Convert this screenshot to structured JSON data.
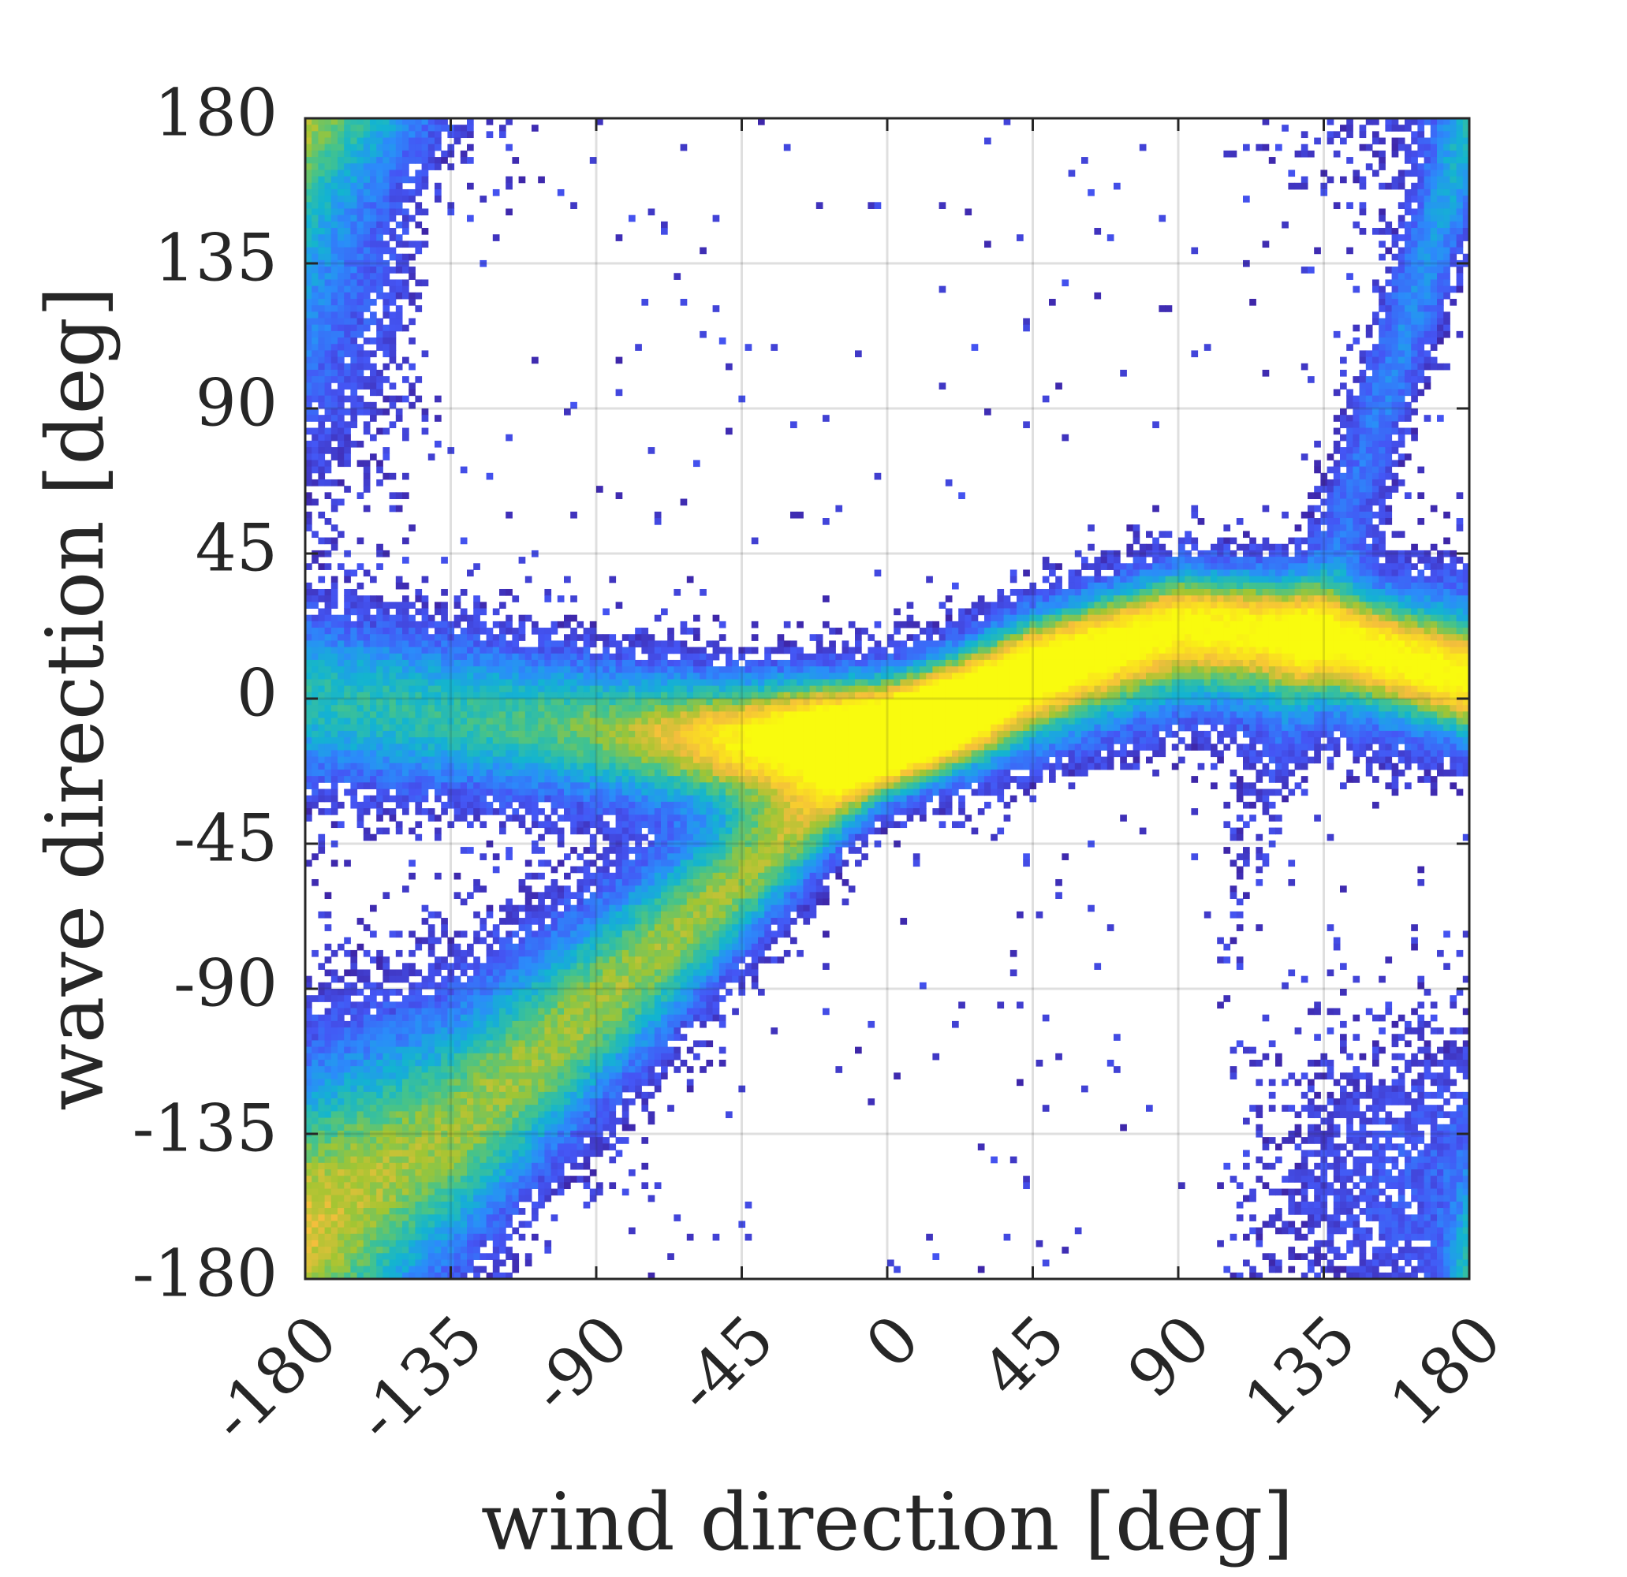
{
  "chart_data": {
    "type": "heatmap",
    "title": "",
    "xlabel": "wind direction [deg]",
    "ylabel": "wave direction [deg]",
    "xlim": [
      -180,
      180
    ],
    "ylim": [
      -180,
      180
    ],
    "xticks": [
      "-180",
      "-135",
      "-90",
      "-45",
      "0",
      "45",
      "90",
      "135",
      "180"
    ],
    "yticks": [
      "180",
      "135",
      "90",
      "45",
      "0",
      "-45",
      "-90",
      "-135",
      "-180"
    ],
    "grid": true,
    "colormap": "parula",
    "colors": [
      "#3e26a8",
      "#4456f5",
      "#2b8cfa",
      "#13b4d0",
      "#44c38c",
      "#a2c532",
      "#f4be3c",
      "#fadd22",
      "#f9fb0e"
    ],
    "density_ridges": [
      {
        "x": [
          -180,
          -135,
          -90,
          -45,
          0,
          45,
          90,
          135,
          180
        ],
        "y": [
          -160,
          -135,
          -95,
          -55,
          -15,
          10,
          25,
          20,
          5
        ]
      },
      {
        "x": [
          -180,
          -135,
          -90,
          -45,
          0,
          45,
          90,
          135,
          180
        ],
        "y": [
          0,
          -5,
          -10,
          -15,
          -10,
          5,
          15,
          15,
          10
        ]
      },
      {
        "x": [
          -180,
          -150,
          -120,
          120,
          150,
          180
        ],
        "y": [
          180,
          90,
          60,
          -140,
          -170,
          -180
        ]
      }
    ],
    "peak": {
      "x": -15,
      "y": -10
    }
  }
}
